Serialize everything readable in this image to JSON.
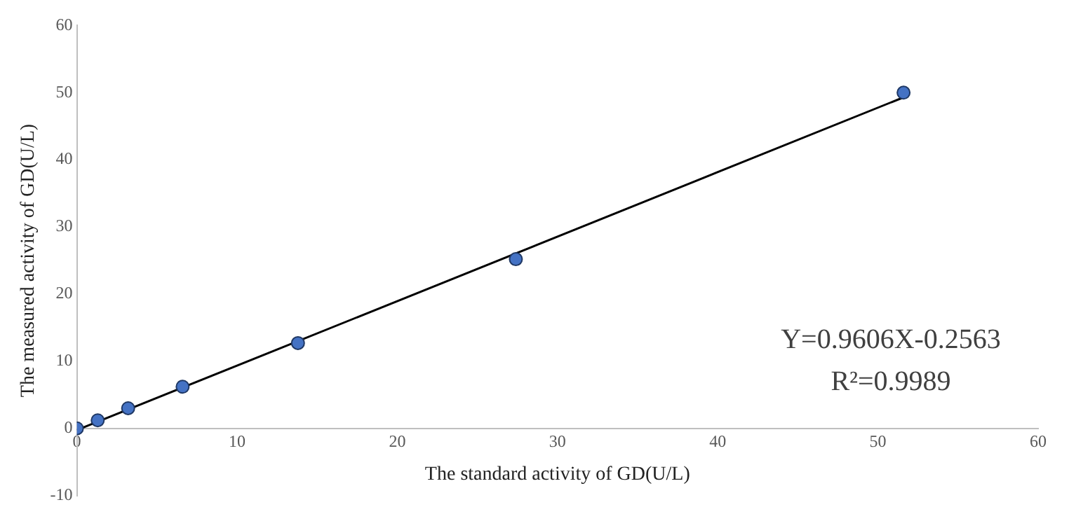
{
  "chart_data": {
    "type": "scatter",
    "xlabel": "The standard activity of GD(U/L)",
    "ylabel": "The measured activity of GD(U/L)",
    "x": [
      0,
      1.3,
      3.2,
      6.6,
      13.8,
      27.4,
      51.6
    ],
    "series": [
      {
        "type": "scatter",
        "color": "#4472c4",
        "values": [
          0,
          1.2,
          3.0,
          6.2,
          12.7,
          25.2,
          50.0
        ]
      },
      {
        "type": "line",
        "color": "#000000",
        "x": [
          0,
          51.6
        ],
        "values": [
          -0.26,
          49.3
        ],
        "marker": "none"
      }
    ],
    "xlim": [
      0,
      60
    ],
    "xticks": [
      0,
      10,
      20,
      30,
      40,
      50,
      60
    ],
    "ylim": [
      -10,
      60
    ],
    "yticks": [
      -10,
      0,
      10,
      20,
      30,
      40,
      50,
      60
    ],
    "grid": false,
    "legend": false,
    "marker": "circle",
    "line_style": "solid",
    "annotations": [
      "Y=0.9606X-0.2563",
      "R²=0.9989"
    ]
  }
}
